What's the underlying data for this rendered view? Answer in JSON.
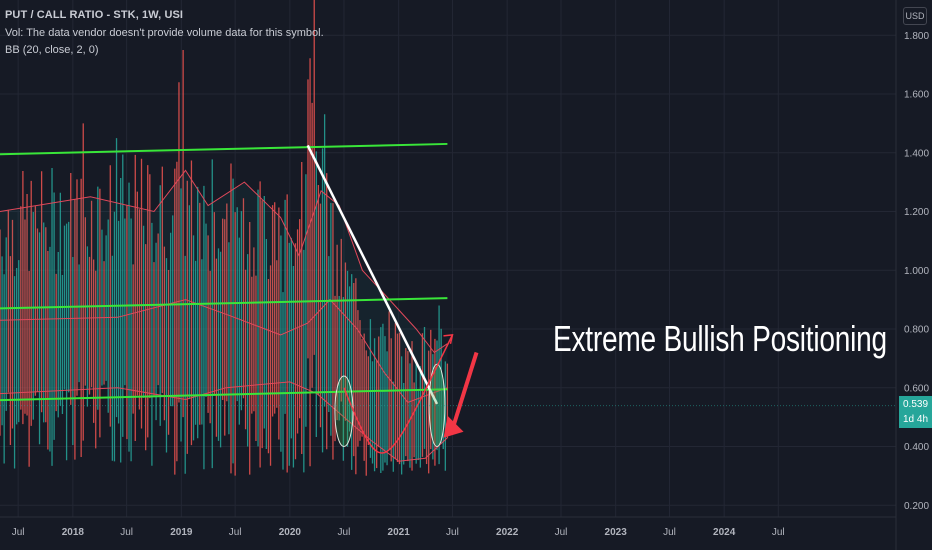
{
  "header": {
    "title": "PUT / CALL RATIO - STK, 1W, USI",
    "volume_note": "Vol: The data vendor doesn't provide volume data for this symbol.",
    "indicator": "BB (20, close, 2, 0)"
  },
  "currency_button": "USD",
  "last_price": {
    "value": "0.539",
    "countdown": "1d 4h"
  },
  "annotation": "Extreme Bullish Positioning",
  "colors": {
    "background": "#161a25",
    "up_bar": "#26a69a",
    "down_bar": "#ef5350",
    "bollinger": "#e0485a",
    "trend_lines": "#39e639",
    "annotation_arrow": "#f23645",
    "price_tag": "#26a69a"
  },
  "chart_data": {
    "type": "bar",
    "symbol": "PUT / CALL RATIO - STK, 1W, USI",
    "xlim": [
      "2017-05-01",
      "2025-08-01"
    ],
    "ylim": [
      0.16,
      1.92
    ],
    "y_ticks": [
      "0.200",
      "0.400",
      "0.600",
      "0.800",
      "1.000",
      "1.200",
      "1.400",
      "1.600",
      "1.800"
    ],
    "x_ticks": [
      {
        "date": "2017-07-01",
        "label": "Jul"
      },
      {
        "date": "2018-01-01",
        "label": "2018"
      },
      {
        "date": "2018-07-01",
        "label": "Jul"
      },
      {
        "date": "2019-01-01",
        "label": "2019"
      },
      {
        "date": "2019-07-01",
        "label": "Jul"
      },
      {
        "date": "2020-01-01",
        "label": "2020"
      },
      {
        "date": "2020-07-01",
        "label": "Jul"
      },
      {
        "date": "2021-01-01",
        "label": "2021"
      },
      {
        "date": "2021-07-01",
        "label": "Jul"
      },
      {
        "date": "2022-01-01",
        "label": "2022"
      },
      {
        "date": "2022-07-01",
        "label": "Jul"
      },
      {
        "date": "2023-01-01",
        "label": "2023"
      },
      {
        "date": "2023-07-01",
        "label": "Jul"
      },
      {
        "date": "2024-01-01",
        "label": "2024"
      },
      {
        "date": "2024-07-01",
        "label": "Jul"
      }
    ],
    "grid": true,
    "last_value": 0.539,
    "weekly_bars": {
      "start": "2017-05-01",
      "end": "2021-06-14",
      "mean_path": [
        {
          "date": "2017-05-01",
          "value": 0.78
        },
        {
          "date": "2018-06-01",
          "value": 0.82
        },
        {
          "date": "2019-06-01",
          "value": 0.78
        },
        {
          "date": "2019-12-01",
          "value": 0.72
        },
        {
          "date": "2020-02-20",
          "value": 0.78
        },
        {
          "date": "2020-03-15",
          "value": 1.05
        },
        {
          "date": "2020-06-01",
          "value": 0.72
        },
        {
          "date": "2020-10-01",
          "value": 0.55
        },
        {
          "date": "2021-01-15",
          "value": 0.47
        },
        {
          "date": "2021-06-14",
          "value": 0.54
        }
      ],
      "range_path": [
        {
          "date": "2017-05-01",
          "value": 0.5
        },
        {
          "date": "2019-06-01",
          "value": 0.55
        },
        {
          "date": "2020-02-20",
          "value": 0.55
        },
        {
          "date": "2020-03-15",
          "value": 0.9
        },
        {
          "date": "2020-06-01",
          "value": 0.4
        },
        {
          "date": "2021-06-14",
          "value": 0.25
        }
      ],
      "spikes": [
        {
          "date": "2018-02-05",
          "high": 1.5,
          "low": 0.42
        },
        {
          "date": "2018-12-24",
          "high": 1.64,
          "low": 0.55
        },
        {
          "date": "2019-01-07",
          "high": 1.75,
          "low": 0.5
        },
        {
          "date": "2018-05-28",
          "high": 1.45,
          "low": 0.5
        },
        {
          "date": "2020-03-02",
          "high": 1.65,
          "low": 0.7
        },
        {
          "date": "2020-03-16",
          "high": 1.57,
          "low": 0.6
        },
        {
          "date": "2021-05-17",
          "high": 0.88,
          "low": 0.34
        }
      ]
    },
    "bollinger": {
      "upper": [
        {
          "date": "2017-05-01",
          "value": 1.2
        },
        {
          "date": "2018-03-01",
          "value": 1.25
        },
        {
          "date": "2018-10-01",
          "value": 1.2
        },
        {
          "date": "2019-01-15",
          "value": 1.34
        },
        {
          "date": "2019-04-01",
          "value": 1.22
        },
        {
          "date": "2019-08-01",
          "value": 1.3
        },
        {
          "date": "2019-12-01",
          "value": 1.18
        },
        {
          "date": "2020-02-01",
          "value": 1.05
        },
        {
          "date": "2020-04-15",
          "value": 1.27
        },
        {
          "date": "2020-06-15",
          "value": 1.22
        },
        {
          "date": "2020-09-01",
          "value": 1.0
        },
        {
          "date": "2020-12-01",
          "value": 0.9
        },
        {
          "date": "2021-03-01",
          "value": 0.8
        },
        {
          "date": "2021-05-01",
          "value": 0.72
        },
        {
          "date": "2021-06-14",
          "value": 0.75
        }
      ],
      "middle": [
        {
          "date": "2017-05-01",
          "value": 0.83
        },
        {
          "date": "2018-06-01",
          "value": 0.84
        },
        {
          "date": "2019-01-15",
          "value": 0.9
        },
        {
          "date": "2019-06-01",
          "value": 0.85
        },
        {
          "date": "2019-12-01",
          "value": 0.78
        },
        {
          "date": "2020-03-01",
          "value": 0.82
        },
        {
          "date": "2020-05-15",
          "value": 0.9
        },
        {
          "date": "2020-08-15",
          "value": 0.8
        },
        {
          "date": "2020-11-15",
          "value": 0.65
        },
        {
          "date": "2021-02-01",
          "value": 0.55
        },
        {
          "date": "2021-06-14",
          "value": 0.6
        }
      ],
      "lower": [
        {
          "date": "2017-05-01",
          "value": 0.58
        },
        {
          "date": "2018-06-01",
          "value": 0.6
        },
        {
          "date": "2019-01-15",
          "value": 0.56
        },
        {
          "date": "2019-06-01",
          "value": 0.6
        },
        {
          "date": "2020-01-01",
          "value": 0.62
        },
        {
          "date": "2020-04-01",
          "value": 0.58
        },
        {
          "date": "2020-07-01",
          "value": 0.5
        },
        {
          "date": "2020-10-01",
          "value": 0.42
        },
        {
          "date": "2021-01-01",
          "value": 0.35
        },
        {
          "date": "2021-04-01",
          "value": 0.36
        },
        {
          "date": "2021-06-14",
          "value": 0.43
        }
      ]
    },
    "trend_lines": [
      {
        "name": "upper-channel",
        "color": "green",
        "from": {
          "date": "2017-05-01",
          "value": 1.395
        },
        "to": {
          "date": "2021-06-14",
          "value": 1.43
        }
      },
      {
        "name": "middle-channel",
        "color": "green",
        "from": {
          "date": "2017-05-01",
          "value": 0.87
        },
        "to": {
          "date": "2021-06-14",
          "value": 0.905
        }
      },
      {
        "name": "lower-channel",
        "color": "green",
        "from": {
          "date": "2017-05-01",
          "value": 0.558
        },
        "to": {
          "date": "2021-06-14",
          "value": 0.595
        }
      },
      {
        "name": "decline-line",
        "color": "white",
        "from": {
          "date": "2020-03-01",
          "value": 1.425
        },
        "to": {
          "date": "2021-05-10",
          "value": 0.545
        }
      }
    ],
    "highlight_ellipses": [
      {
        "center_date": "2020-07-01",
        "center_value": 0.52,
        "date_width": "2020-06-01/2020-08-01",
        "value_height": [
          0.4,
          0.64
        ]
      },
      {
        "center_date": "2021-05-10",
        "center_value": 0.54,
        "date_width": "2021-04-15/2021-06-07",
        "value_height": [
          0.4,
          0.68
        ]
      }
    ],
    "curve_arrow": {
      "from_date": "2020-07-01",
      "to_date": "2021-07-01",
      "bottom_value": 0.4,
      "end_value": 0.78
    },
    "annotation_arrow": {
      "from": {
        "date": "2021-09-20",
        "value": 0.72
      },
      "to": {
        "date": "2021-06-01",
        "value": 0.43
      }
    }
  }
}
